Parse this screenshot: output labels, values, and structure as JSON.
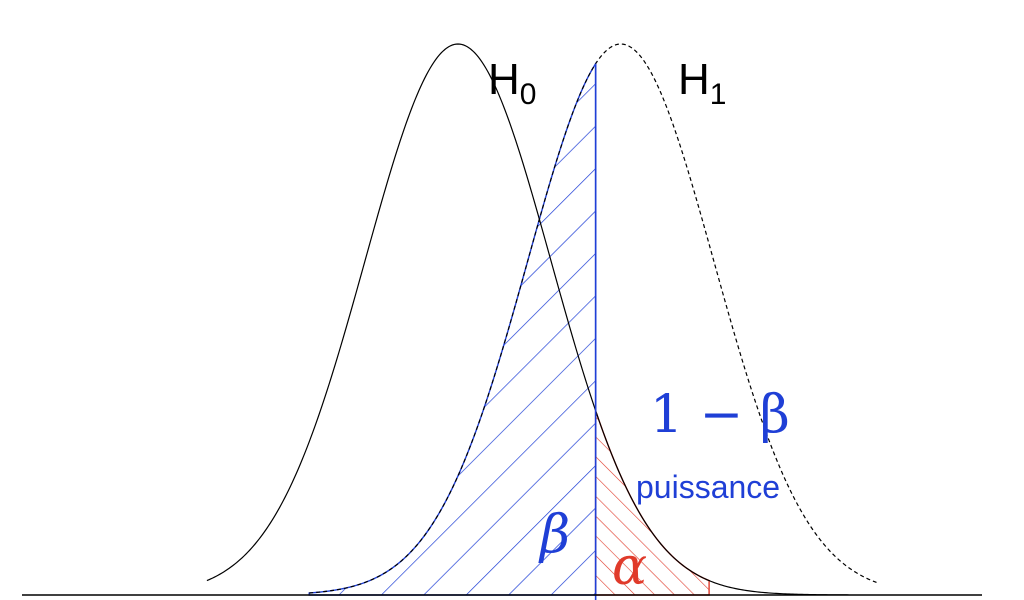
{
  "labels": {
    "h0_main": "H",
    "h0_sub": "0",
    "h1_main": "H",
    "h1_sub": "1",
    "beta": "β",
    "alpha": "α",
    "power": "1 − β",
    "puissance": "puissance"
  },
  "colors": {
    "h0_curve": "#000000",
    "h1_curve": "#000000",
    "beta_region": "#1f3fd6",
    "alpha_region": "#e03a2a",
    "threshold_line": "#1f3fd6",
    "baseline": "#000000",
    "power_text": "#1f3fd6"
  },
  "distributions": {
    "h0": {
      "mean": 0,
      "sd": 1
    },
    "h1": {
      "mean": 1.75,
      "sd": 1
    },
    "threshold": 1.48
  }
}
